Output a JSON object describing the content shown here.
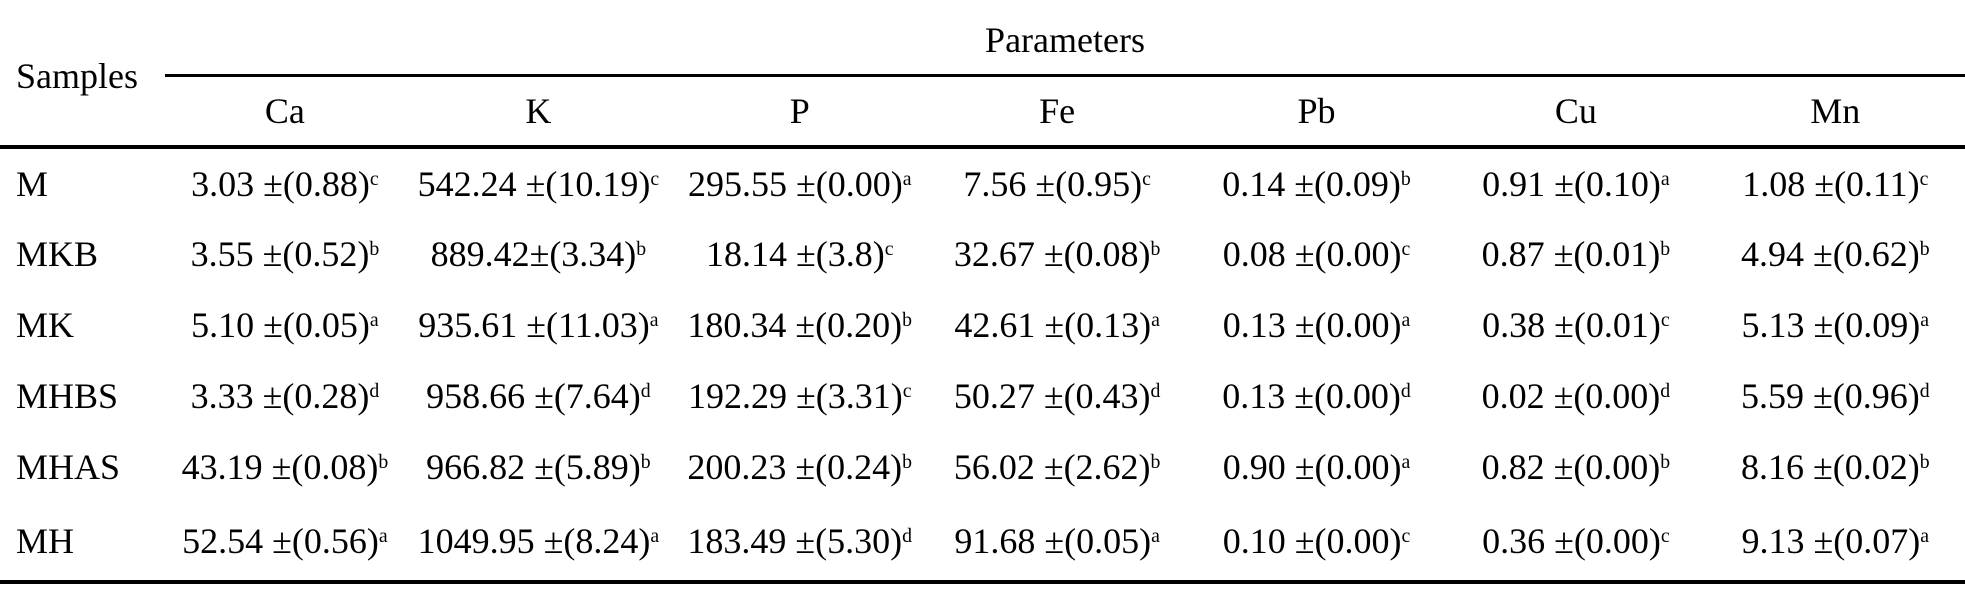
{
  "table": {
    "samples_header": "Samples",
    "parameters_header": "Parameters",
    "columns": [
      "Ca",
      "K",
      "P",
      "Fe",
      "Pb",
      "Cu",
      "Mn"
    ],
    "rows": [
      {
        "sample": "M",
        "cells": [
          {
            "value": "3.03 ±(0.88)",
            "sup": "c"
          },
          {
            "value": "542.24 ±(10.19)",
            "sup": "c"
          },
          {
            "value": "295.55 ±(0.00)",
            "sup": "a"
          },
          {
            "value": "7.56 ±(0.95)",
            "sup": "c"
          },
          {
            "value": "0.14 ±(0.09)",
            "sup": "b"
          },
          {
            "value": "0.91 ±(0.10)",
            "sup": "a"
          },
          {
            "value": "1.08 ±(0.11)",
            "sup": "c"
          }
        ]
      },
      {
        "sample": "MKB",
        "cells": [
          {
            "value": "3.55 ±(0.52)",
            "sup": "b"
          },
          {
            "value": "889.42±(3.34)",
            "sup": "b"
          },
          {
            "value": "18.14 ±(3.8)",
            "sup": "c"
          },
          {
            "value": "32.67 ±(0.08)",
            "sup": "b"
          },
          {
            "value": "0.08 ±(0.00)",
            "sup": "c"
          },
          {
            "value": "0.87 ±(0.01)",
            "sup": "b"
          },
          {
            "value": "4.94 ±(0.62)",
            "sup": "b"
          }
        ]
      },
      {
        "sample": "MK",
        "cells": [
          {
            "value": "5.10 ±(0.05)",
            "sup": "a"
          },
          {
            "value": "935.61 ±(11.03)",
            "sup": "a"
          },
          {
            "value": "180.34 ±(0.20)",
            "sup": "b"
          },
          {
            "value": "42.61 ±(0.13)",
            "sup": "a"
          },
          {
            "value": "0.13 ±(0.00)",
            "sup": "a"
          },
          {
            "value": "0.38 ±(0.01)",
            "sup": "c"
          },
          {
            "value": "5.13 ±(0.09)",
            "sup": "a"
          }
        ]
      },
      {
        "sample": "MHBS",
        "cells": [
          {
            "value": "3.33 ±(0.28)",
            "sup": "d"
          },
          {
            "value": "958.66 ±(7.64)",
            "sup": "d"
          },
          {
            "value": "192.29 ±(3.31)",
            "sup": "c"
          },
          {
            "value": "50.27 ±(0.43)",
            "sup": "d"
          },
          {
            "value": "0.13 ±(0.00)",
            "sup": "d"
          },
          {
            "value": "0.02 ±(0.00)",
            "sup": "d"
          },
          {
            "value": "5.59 ±(0.96)",
            "sup": "d"
          }
        ]
      },
      {
        "sample": "MHAS",
        "cells": [
          {
            "value": "43.19 ±(0.08)",
            "sup": "b"
          },
          {
            "value": "966.82 ±(5.89)",
            "sup": "b"
          },
          {
            "value": "200.23 ±(0.24)",
            "sup": "b"
          },
          {
            "value": "56.02 ±(2.62)",
            "sup": "b"
          },
          {
            "value": "0.90 ±(0.00)",
            "sup": "a"
          },
          {
            "value": "0.82 ±(0.00)",
            "sup": "b"
          },
          {
            "value": "8.16 ±(0.02)",
            "sup": "b"
          }
        ]
      },
      {
        "sample": "MH",
        "cells": [
          {
            "value": "52.54 ±(0.56)",
            "sup": "a"
          },
          {
            "value": "1049.95 ±(8.24)",
            "sup": "a"
          },
          {
            "value": "183.49 ±(5.30)",
            "sup": "d"
          },
          {
            "value": "91.68 ±(0.05)",
            "sup": "a"
          },
          {
            "value": "0.10 ±(0.00)",
            "sup": "c"
          },
          {
            "value": "0.36 ±(0.00)",
            "sup": "c"
          },
          {
            "value": "9.13 ±(0.07)",
            "sup": "a"
          }
        ]
      }
    ],
    "colors": {
      "text": "#000000",
      "background": "#ffffff",
      "rule": "#000000"
    }
  }
}
